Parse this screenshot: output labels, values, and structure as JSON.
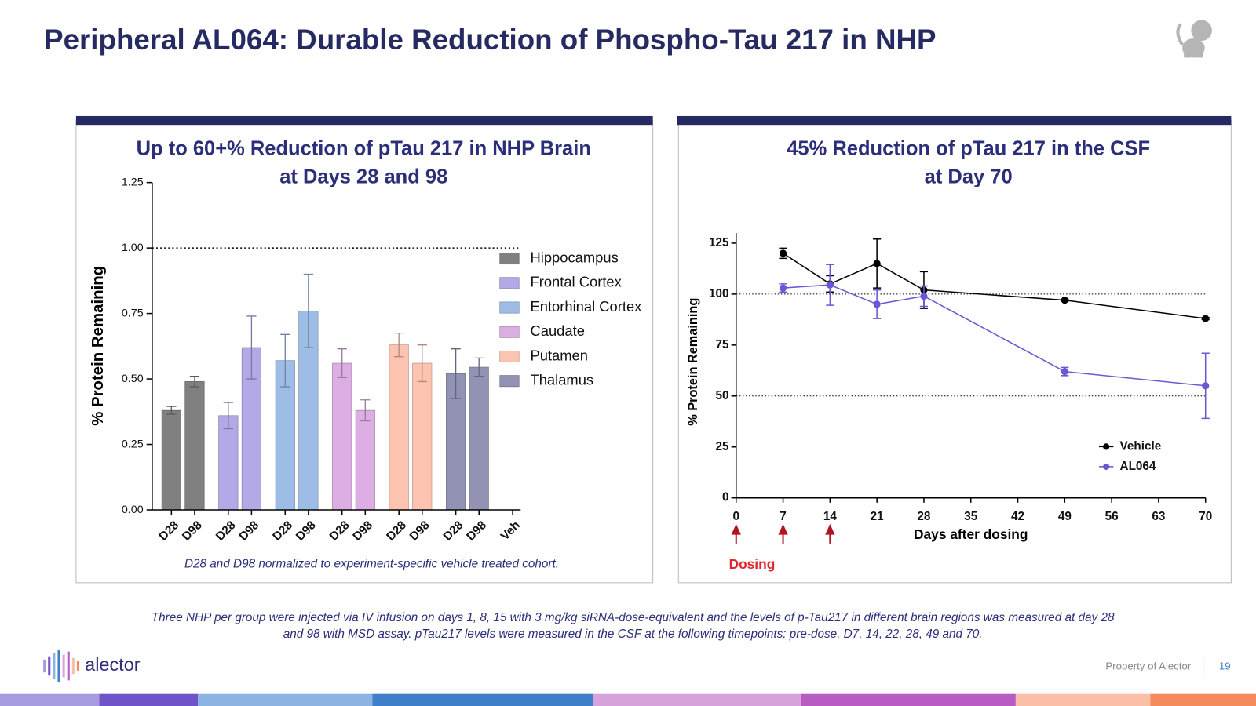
{
  "title": "Peripheral AL064: Durable Reduction of Phospho-Tau 217 in NHP",
  "footnote": [
    "Three NHP per group were injected via IV infusion on days 1, 8, 15 with 3 mg/kg siRNA-dose-equivalent and the levels of p-Tau217 in different brain regions was measured at day 28",
    "and 98 with MSD assay. pTau217 levels were measured in the CSF at the following timepoints: pre-dose, D7, 14, 22, 28, 49 and 70."
  ],
  "footer": {
    "logo": "alector",
    "property": "Property of Alector",
    "page": "19"
  },
  "chart_data": [
    {
      "type": "bar",
      "title": [
        "Up to 60+% Reduction of pTau 217 in NHP Brain",
        "at Days 28 and 98"
      ],
      "ylabel": "% Protein Remaining",
      "note": "D28 and D98 normalized to experiment-specific vehicle treated cohort.",
      "categories": [
        "D28",
        "D98",
        "D28",
        "D98",
        "D28",
        "D98",
        "D28",
        "D98",
        "D28",
        "D98",
        "D28",
        "D98",
        "Veh"
      ],
      "ylim": [
        0,
        1.25
      ],
      "yticks": [
        {
          "value": 0,
          "label": "0.00"
        },
        {
          "value": 0.25,
          "label": "0.25"
        },
        {
          "value": 0.5,
          "label": "0.50"
        },
        {
          "value": 0.75,
          "label": "0.75"
        },
        {
          "value": 1,
          "label": "1.00"
        },
        {
          "value": 1.25,
          "label": "1.25"
        }
      ],
      "ref_line": 1,
      "series": [
        {
          "name": "Hippocampus",
          "color": "#808080",
          "values": [
            0.38,
            0.49,
            null,
            null,
            null,
            null,
            null,
            null,
            null,
            null,
            null,
            null,
            null
          ],
          "errors": [
            0.015,
            0.02,
            null,
            null,
            null,
            null,
            null,
            null,
            null,
            null,
            null,
            null,
            null
          ]
        },
        {
          "name": "Frontal Cortex",
          "color": "#b3a9e6",
          "values": [
            null,
            null,
            0.36,
            0.62,
            null,
            null,
            null,
            null,
            null,
            null,
            null,
            null,
            null
          ],
          "errors": [
            null,
            null,
            0.05,
            0.12,
            null,
            null,
            null,
            null,
            null,
            null,
            null,
            null,
            null
          ]
        },
        {
          "name": "Entorhinal Cortex",
          "color": "#9dbde6",
          "values": [
            null,
            null,
            null,
            null,
            0.57,
            0.76,
            null,
            null,
            null,
            null,
            null,
            null,
            null
          ],
          "errors": [
            null,
            null,
            null,
            null,
            0.1,
            0.14,
            null,
            null,
            null,
            null,
            null,
            null,
            null
          ]
        },
        {
          "name": "Caudate",
          "color": "#dcaee3",
          "values": [
            null,
            null,
            null,
            null,
            null,
            null,
            0.56,
            0.38,
            null,
            null,
            null,
            null,
            null
          ],
          "errors": [
            null,
            null,
            null,
            null,
            null,
            null,
            0.055,
            0.04,
            null,
            null,
            null,
            null,
            null
          ]
        },
        {
          "name": "Putamen",
          "color": "#fcc3b0",
          "values": [
            null,
            null,
            null,
            null,
            null,
            null,
            null,
            null,
            0.63,
            0.56,
            null,
            null,
            null
          ],
          "errors": [
            null,
            null,
            null,
            null,
            null,
            null,
            null,
            null,
            0.045,
            0.07,
            null,
            null,
            null
          ]
        },
        {
          "name": "Thalamus",
          "color": "#9292b5",
          "values": [
            null,
            null,
            null,
            null,
            null,
            null,
            null,
            null,
            null,
            null,
            0.52,
            0.545,
            null
          ],
          "errors": [
            null,
            null,
            null,
            null,
            null,
            null,
            null,
            null,
            null,
            null,
            0.095,
            0.035,
            null
          ]
        }
      ]
    },
    {
      "type": "line",
      "title": [
        "45% Reduction of pTau 217 in the CSF",
        "at Day 70"
      ],
      "ylabel": "% Protein Remaining",
      "xlabel": "Days after dosing",
      "x": [
        7,
        14,
        21,
        28,
        49,
        70
      ],
      "xlim": [
        0,
        70
      ],
      "xticks": [
        0,
        7,
        14,
        21,
        28,
        35,
        42,
        49,
        56,
        63,
        70
      ],
      "ylim": [
        0,
        130
      ],
      "yticks": [
        0,
        25,
        50,
        75,
        100,
        125
      ],
      "ref_lines": [
        100,
        50
      ],
      "dosing_days": [
        0,
        7,
        14
      ],
      "dosing_label": "Dosing",
      "series": [
        {
          "name": "Vehicle",
          "color": "#000000",
          "values": [
            120,
            105,
            115,
            102,
            97,
            88
          ],
          "errors": [
            2.5,
            4,
            12,
            9,
            0.5,
            0.5
          ]
        },
        {
          "name": "AL064",
          "color": "#6b57d6",
          "values": [
            103,
            104.5,
            95,
            99,
            62,
            55
          ],
          "errors": [
            2,
            10,
            7,
            5,
            2,
            16
          ]
        }
      ]
    }
  ]
}
